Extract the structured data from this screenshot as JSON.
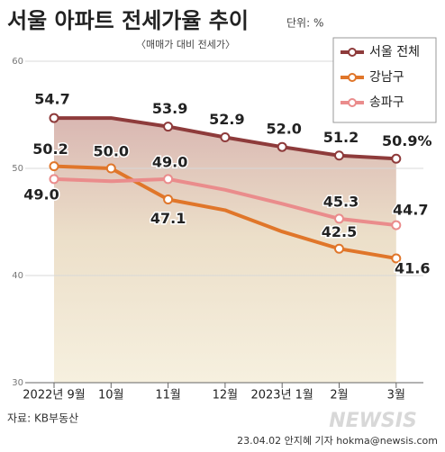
{
  "chart_data": {
    "type": "line",
    "title": "서울 아파트 전세가율 추이",
    "unit": "단위: %",
    "subtitle": "〈매매가 대비 전세가〉",
    "categories": [
      "2022년 9월",
      "10월",
      "11월",
      "12월",
      "2023년 1월",
      "2월",
      "3월"
    ],
    "series": [
      {
        "name": "서울 전체",
        "color": "#8e3b3b",
        "values": [
          54.7,
          54.7,
          53.9,
          52.9,
          52.0,
          51.2,
          50.9
        ],
        "value_labels": [
          "54.7",
          null,
          "53.9",
          "52.9",
          "52.0",
          "51.2",
          "50.9%"
        ]
      },
      {
        "name": "강남구",
        "color": "#e0762a",
        "values": [
          50.2,
          50.0,
          47.1,
          46.1,
          44.1,
          42.5,
          41.6
        ],
        "value_labels": [
          "50.2",
          "50.0",
          "47.1",
          null,
          null,
          "42.5",
          "41.6"
        ]
      },
      {
        "name": "송파구",
        "color": "#ea8c8c",
        "values": [
          49.0,
          48.8,
          49.0,
          48.0,
          46.7,
          45.3,
          44.7
        ],
        "value_labels": [
          "49.0",
          null,
          "49.0",
          null,
          null,
          "45.3",
          "44.7"
        ]
      }
    ],
    "ylim": [
      30,
      60
    ],
    "yticks": [
      30,
      40,
      50,
      60
    ],
    "grid": true,
    "legend": "upper right",
    "source": "자료: KB부동산",
    "credit": "23.04.02 안지혜 기자 hokma@newsis.com",
    "watermark": "NEWSIS"
  }
}
